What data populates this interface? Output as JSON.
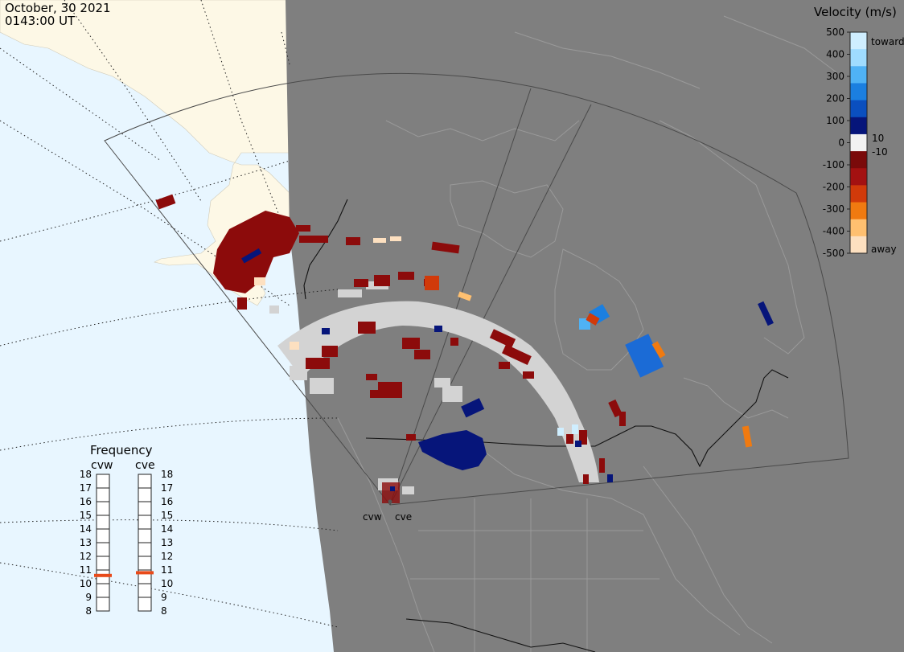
{
  "header": {
    "date": "October, 30 2021",
    "time": "0143:00 UT"
  },
  "colors": {
    "sunlit_ocean": "#e8f6ff",
    "sunlit_land": "#fdf8e6",
    "night_side": "#7f7f7f",
    "night_coast": "#9a9a9a",
    "ground_scatter": "#d3d3d3",
    "fov_outline": "#555555"
  },
  "velocity_scale": {
    "title": "Velocity (m/s)",
    "tick_labels": [
      "500",
      "400",
      "300",
      "200",
      "100",
      "0",
      "-100",
      "-200",
      "-300",
      "-400",
      "-500"
    ],
    "toward_label": "toward",
    "away_label": "away",
    "ten_label": "10",
    "minus_ten_label": "-10",
    "bands": [
      "#cfeeff",
      "#9fdcff",
      "#4fb2f5",
      "#1b7fe0",
      "#0a4fbf",
      "#06157a",
      "#f2f2f2",
      "#7a0a0a",
      "#a31111",
      "#d13a0a",
      "#f07a10",
      "#ffc070",
      "#fde0c0"
    ]
  },
  "frequency_panel": {
    "title": "Frequency",
    "radars": [
      {
        "name": "cvw",
        "frequency_mhz": 10.6
      },
      {
        "name": "cve",
        "frequency_mhz": 10.8
      }
    ],
    "ticks": [
      "18",
      "17",
      "16",
      "15",
      "14",
      "13",
      "12",
      "11",
      "10",
      "9",
      "8"
    ],
    "marker_color": "#e84a1a"
  },
  "radars": {
    "site_labels": [
      "cvw",
      "cve"
    ]
  }
}
